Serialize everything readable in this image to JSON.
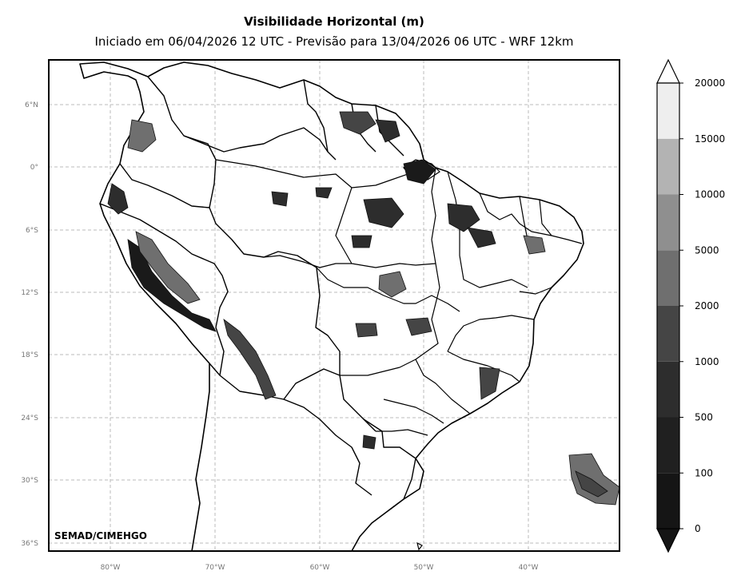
{
  "title": "Visibilidade Horizontal (m)",
  "subtitle": "Iniciado em 06/04/2026 12 UTC - Previsão para 13/04/2026 06 UTC - WRF 12km",
  "credit": "SEMAD/CIMEHGO",
  "lat_ticks": [
    "6°N",
    "0°",
    "6°S",
    "12°S",
    "18°S",
    "24°S",
    "30°S",
    "36°S"
  ],
  "lon_ticks": [
    "80°W",
    "70°W",
    "60°W",
    "50°W",
    "40°W"
  ],
  "map_extent": {
    "lon_min": -86,
    "lon_max": -31.5,
    "lat_min": -36,
    "lat_max": 10.3
  },
  "gridlines": true,
  "colorbar": {
    "ticks": [
      "0",
      "100",
      "500",
      "1000",
      "2000",
      "5000",
      "10000",
      "15000",
      "20000"
    ],
    "colors": [
      "#151515",
      "#202020",
      "#2d2d2d",
      "#454545",
      "#6f6f6f",
      "#8f8f8f",
      "#b3b3b3",
      "#eeeeee"
    ],
    "extend": "both"
  }
}
